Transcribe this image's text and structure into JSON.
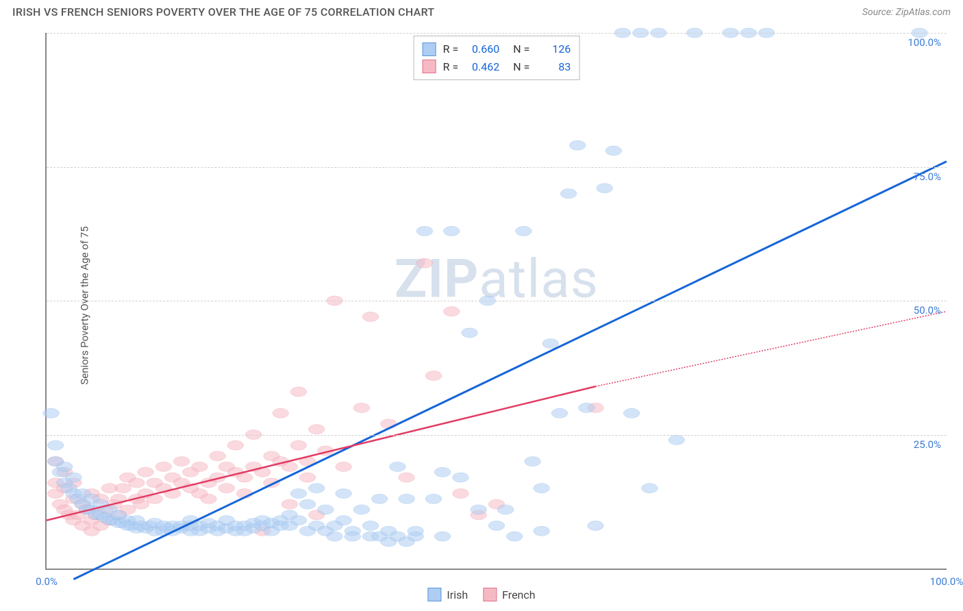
{
  "header": {
    "title": "IRISH VS FRENCH SENIORS POVERTY OVER THE AGE OF 75 CORRELATION CHART",
    "source": "Source: ZipAtlas.com"
  },
  "chart": {
    "type": "scatter",
    "ylabel": "Seniors Poverty Over the Age of 75",
    "watermark_bold": "ZIP",
    "watermark_rest": "atlas",
    "background_color": "#ffffff",
    "grid_color": "#d0d0d0",
    "axis_color": "#888888",
    "tick_color": "#3a7bd5",
    "xlim": [
      0,
      100
    ],
    "ylim": [
      0,
      100
    ],
    "yticks": [
      {
        "val": 25,
        "label": "25.0%"
      },
      {
        "val": 50,
        "label": "50.0%"
      },
      {
        "val": 75,
        "label": "75.0%"
      },
      {
        "val": 100,
        "label": "100.0%"
      }
    ],
    "xticks": [
      {
        "val": 0,
        "label": "0.0%"
      },
      {
        "val": 100,
        "label": "100.0%"
      }
    ],
    "series": [
      {
        "name": "Irish",
        "fill": "#aecdf2",
        "stroke": "#5a94d6",
        "fill_opacity": 0.55,
        "trend_color": "#1565d8",
        "trend_width": 3,
        "trend": {
          "x1": 3,
          "y1": -2,
          "x2": 100,
          "y2": 76
        },
        "dashed_from_x": 100,
        "marker_r": 8,
        "R": "0.660",
        "N": "126",
        "points": [
          [
            0.5,
            29
          ],
          [
            1,
            23
          ],
          [
            1,
            20
          ],
          [
            1.5,
            18
          ],
          [
            2,
            19
          ],
          [
            2,
            16
          ],
          [
            2.5,
            15
          ],
          [
            3,
            17
          ],
          [
            3,
            14
          ],
          [
            3.5,
            13
          ],
          [
            4,
            14
          ],
          [
            4,
            12
          ],
          [
            4.5,
            11
          ],
          [
            5,
            13
          ],
          [
            5,
            11
          ],
          [
            5.5,
            10
          ],
          [
            6,
            12
          ],
          [
            6,
            10
          ],
          [
            6.5,
            9.5
          ],
          [
            7,
            11
          ],
          [
            7,
            9
          ],
          [
            7.5,
            9
          ],
          [
            8,
            10
          ],
          [
            8,
            8.5
          ],
          [
            8.5,
            8.5
          ],
          [
            9,
            9
          ],
          [
            9,
            8
          ],
          [
            9.5,
            8
          ],
          [
            10,
            9
          ],
          [
            10,
            7.5
          ],
          [
            10.5,
            8
          ],
          [
            11,
            7.5
          ],
          [
            11.5,
            8
          ],
          [
            12,
            7
          ],
          [
            12,
            8.5
          ],
          [
            13,
            7
          ],
          [
            13,
            8
          ],
          [
            13.5,
            7.5
          ],
          [
            14,
            7
          ],
          [
            14,
            8
          ],
          [
            15,
            7.5
          ],
          [
            15,
            8
          ],
          [
            16,
            7
          ],
          [
            16,
            8
          ],
          [
            16,
            9
          ],
          [
            17,
            7
          ],
          [
            17,
            8
          ],
          [
            18,
            7.5
          ],
          [
            18,
            8.5
          ],
          [
            19,
            7
          ],
          [
            19,
            8
          ],
          [
            20,
            7.5
          ],
          [
            20,
            9
          ],
          [
            21,
            7
          ],
          [
            21,
            8
          ],
          [
            22,
            8
          ],
          [
            22,
            7
          ],
          [
            23,
            8.5
          ],
          [
            23,
            7.5
          ],
          [
            24,
            8
          ],
          [
            24,
            9
          ],
          [
            25,
            7
          ],
          [
            25,
            8.5
          ],
          [
            26,
            8
          ],
          [
            26,
            9
          ],
          [
            27,
            10
          ],
          [
            27,
            8
          ],
          [
            28,
            9
          ],
          [
            28,
            14
          ],
          [
            29,
            7
          ],
          [
            29,
            12
          ],
          [
            30,
            15
          ],
          [
            30,
            8
          ],
          [
            31,
            7
          ],
          [
            31,
            11
          ],
          [
            32,
            8
          ],
          [
            32,
            6
          ],
          [
            33,
            9
          ],
          [
            33,
            14
          ],
          [
            34,
            7
          ],
          [
            34,
            6
          ],
          [
            35,
            11
          ],
          [
            36,
            6
          ],
          [
            36,
            8
          ],
          [
            37,
            6
          ],
          [
            37,
            13
          ],
          [
            38,
            7
          ],
          [
            38,
            5
          ],
          [
            39,
            6
          ],
          [
            39,
            19
          ],
          [
            40,
            5
          ],
          [
            40,
            13
          ],
          [
            41,
            6
          ],
          [
            41,
            7
          ],
          [
            42,
            63
          ],
          [
            43,
            13
          ],
          [
            44,
            6
          ],
          [
            44,
            18
          ],
          [
            45,
            63
          ],
          [
            46,
            17
          ],
          [
            47,
            44
          ],
          [
            48,
            11
          ],
          [
            49,
            50
          ],
          [
            50,
            8
          ],
          [
            51,
            11
          ],
          [
            52,
            6
          ],
          [
            53,
            63
          ],
          [
            54,
            20
          ],
          [
            55,
            15
          ],
          [
            55,
            7
          ],
          [
            56,
            42
          ],
          [
            57,
            29
          ],
          [
            58,
            70
          ],
          [
            59,
            79
          ],
          [
            60,
            30
          ],
          [
            61,
            8
          ],
          [
            62,
            71
          ],
          [
            63,
            78
          ],
          [
            64,
            100
          ],
          [
            65,
            29
          ],
          [
            66,
            100
          ],
          [
            67,
            15
          ],
          [
            68,
            100
          ],
          [
            70,
            24
          ],
          [
            72,
            100
          ],
          [
            76,
            100
          ],
          [
            78,
            100
          ],
          [
            80,
            100
          ],
          [
            97,
            100
          ]
        ]
      },
      {
        "name": "French",
        "fill": "#f6b9c4",
        "stroke": "#e16f86",
        "fill_opacity": 0.55,
        "trend_color": "#e23b63",
        "trend_width": 2.5,
        "trend": {
          "x1": 0,
          "y1": 9,
          "x2": 61,
          "y2": 34
        },
        "dashed_from_x": 61,
        "dashed_to": {
          "x": 100,
          "y": 48
        },
        "marker_r": 8,
        "R": "0.462",
        "N": "83",
        "points": [
          [
            1,
            20
          ],
          [
            1,
            16
          ],
          [
            1,
            14
          ],
          [
            1.5,
            12
          ],
          [
            2,
            15
          ],
          [
            2,
            11
          ],
          [
            2,
            18
          ],
          [
            2.5,
            10
          ],
          [
            3,
            13
          ],
          [
            3,
            9
          ],
          [
            3,
            16
          ],
          [
            3.5,
            10
          ],
          [
            4,
            12
          ],
          [
            4,
            8
          ],
          [
            4.5,
            11
          ],
          [
            5,
            14
          ],
          [
            5,
            9
          ],
          [
            5,
            7
          ],
          [
            5.5,
            10
          ],
          [
            6,
            13
          ],
          [
            6,
            8
          ],
          [
            6.5,
            11
          ],
          [
            7,
            15
          ],
          [
            7,
            9
          ],
          [
            7.5,
            12
          ],
          [
            8,
            10
          ],
          [
            8,
            13
          ],
          [
            8.5,
            15
          ],
          [
            9,
            11
          ],
          [
            9,
            17
          ],
          [
            10,
            13
          ],
          [
            10,
            16
          ],
          [
            10.5,
            12
          ],
          [
            11,
            18
          ],
          [
            11,
            14
          ],
          [
            12,
            16
          ],
          [
            12,
            13
          ],
          [
            13,
            15
          ],
          [
            13,
            19
          ],
          [
            14,
            14
          ],
          [
            14,
            17
          ],
          [
            15,
            16
          ],
          [
            15,
            20
          ],
          [
            16,
            15
          ],
          [
            16,
            18
          ],
          [
            17,
            14
          ],
          [
            17,
            19
          ],
          [
            18,
            16
          ],
          [
            18,
            13
          ],
          [
            19,
            17
          ],
          [
            19,
            21
          ],
          [
            20,
            15
          ],
          [
            20,
            19
          ],
          [
            21,
            18
          ],
          [
            21,
            23
          ],
          [
            22,
            17
          ],
          [
            22,
            14
          ],
          [
            23,
            19
          ],
          [
            23,
            25
          ],
          [
            24,
            18
          ],
          [
            24,
            7
          ],
          [
            25,
            21
          ],
          [
            25,
            16
          ],
          [
            26,
            20
          ],
          [
            26,
            29
          ],
          [
            27,
            19
          ],
          [
            27,
            12
          ],
          [
            28,
            23
          ],
          [
            28,
            33
          ],
          [
            29,
            20
          ],
          [
            29,
            17
          ],
          [
            30,
            10
          ],
          [
            30,
            26
          ],
          [
            31,
            22
          ],
          [
            32,
            50
          ],
          [
            33,
            19
          ],
          [
            35,
            30
          ],
          [
            36,
            47
          ],
          [
            38,
            27
          ],
          [
            40,
            17
          ],
          [
            42,
            57
          ],
          [
            43,
            36
          ],
          [
            45,
            48
          ],
          [
            46,
            14
          ],
          [
            48,
            10
          ],
          [
            50,
            12
          ],
          [
            61,
            30
          ]
        ]
      }
    ],
    "legend": {
      "items": [
        {
          "label": "Irish",
          "fill": "#aecdf2",
          "stroke": "#5a94d6"
        },
        {
          "label": "French",
          "fill": "#f6b9c4",
          "stroke": "#e16f86"
        }
      ]
    }
  }
}
